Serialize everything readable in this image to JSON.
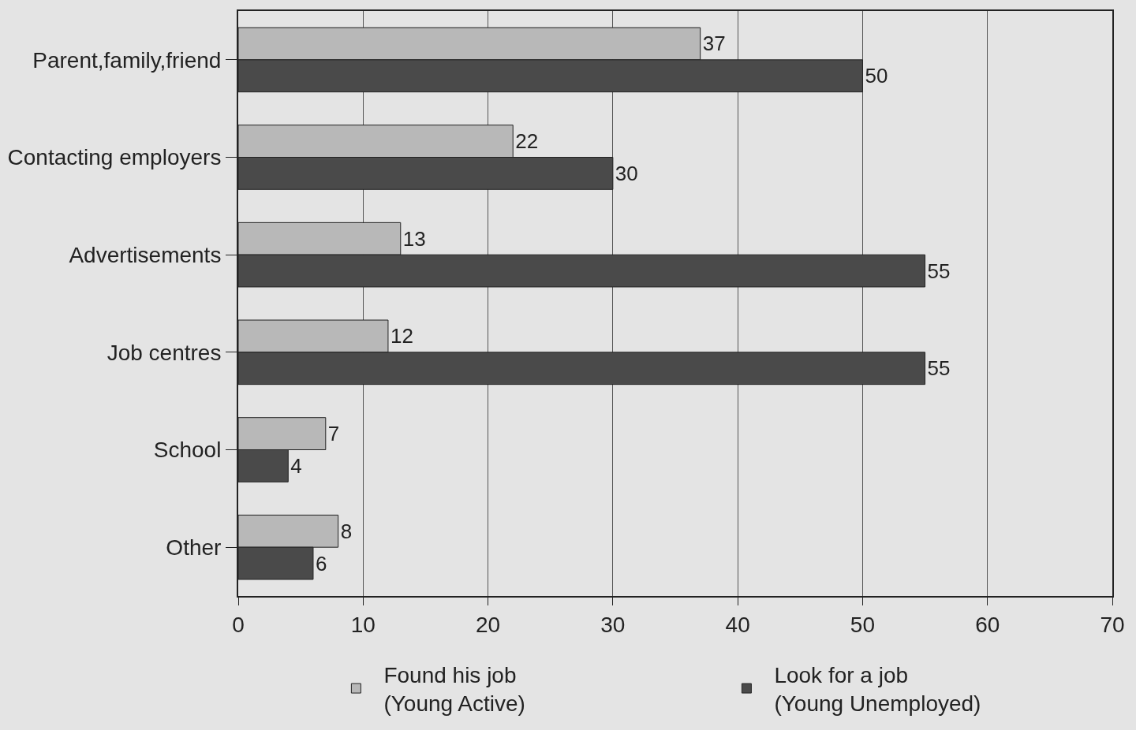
{
  "chart_data": {
    "type": "bar",
    "orientation": "horizontal",
    "categories": [
      "Parent,family,friend",
      "Contacting employers",
      "Advertisements",
      "Job centres",
      "School",
      "Other"
    ],
    "series": [
      {
        "name": "Found his job\n(Young Active)",
        "color": "#b8b8b8",
        "values": [
          37,
          22,
          13,
          12,
          7,
          8
        ]
      },
      {
        "name": "Look for a job\n(Young Unemployed)",
        "color": "#4a4a4a",
        "values": [
          50,
          30,
          55,
          55,
          4,
          6
        ]
      }
    ],
    "xlim": [
      0,
      70
    ],
    "xticks": [
      0,
      10,
      20,
      30,
      40,
      50,
      60,
      70
    ],
    "grid": "x",
    "legend": "bottom",
    "data_labels": true
  }
}
